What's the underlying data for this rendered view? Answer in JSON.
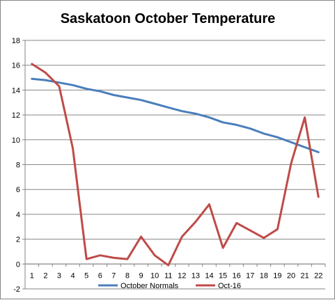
{
  "chart_data": {
    "type": "line",
    "title": "Saskatoon October Temperature",
    "xlabel": "",
    "ylabel": "",
    "x": [
      1,
      2,
      3,
      4,
      5,
      6,
      7,
      8,
      9,
      10,
      11,
      12,
      13,
      14,
      15,
      16,
      17,
      18,
      19,
      20,
      21,
      22
    ],
    "ylim": [
      -2,
      18
    ],
    "yticks": [
      -2,
      0,
      2,
      4,
      6,
      8,
      10,
      12,
      14,
      16,
      18
    ],
    "grid": "horizontal",
    "legend_position": "bottom",
    "series": [
      {
        "name": "October Normals",
        "color": "#4a7ebb",
        "values": [
          14.9,
          14.8,
          14.6,
          14.4,
          14.1,
          13.9,
          13.6,
          13.4,
          13.2,
          12.9,
          12.6,
          12.3,
          12.1,
          11.8,
          11.4,
          11.2,
          10.9,
          10.5,
          10.2,
          9.8,
          9.4,
          9.0
        ]
      },
      {
        "name": "Oct-16",
        "color": "#be4b48",
        "values": [
          16.1,
          15.4,
          14.3,
          9.3,
          0.4,
          0.7,
          0.5,
          0.4,
          2.2,
          0.7,
          -0.1,
          2.2,
          3.4,
          4.8,
          1.3,
          3.3,
          2.7,
          2.1,
          2.8,
          8.1,
          11.8,
          5.4
        ]
      }
    ]
  }
}
